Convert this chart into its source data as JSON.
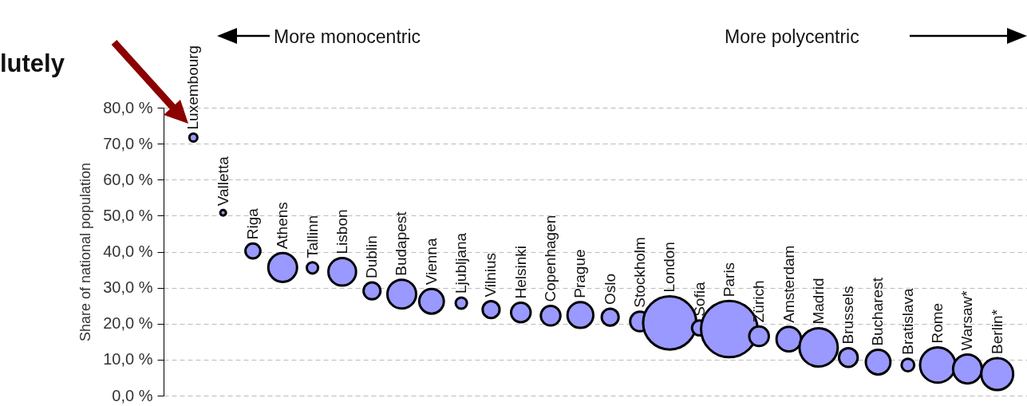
{
  "chart_data": {
    "type": "bubble",
    "ylabel": "Share of national population",
    "categories": [
      "Luxembourg",
      "Valletta",
      "Riga",
      "Athens",
      "Tallinn",
      "Lisbon",
      "Dublin",
      "Budapest",
      "Vienna",
      "Ljubljana",
      "Vilnius",
      "Helsinki",
      "Copenhagen",
      "Prague",
      "Oslo",
      "Stockholm",
      "London",
      "Sofia",
      "Paris",
      "Zürich",
      "Amsterdam",
      "Madrid",
      "Brussels",
      "Bucharest",
      "Bratislava",
      "Rome",
      "Warsaw*",
      "Berlin*"
    ],
    "series": [
      {
        "color": "#9999ff",
        "values": [
          71.7,
          50.8,
          40.2,
          35.6,
          35.5,
          34.4,
          29.1,
          28.2,
          26.2,
          25.7,
          23.9,
          23.1,
          22.2,
          22.4,
          21.8,
          20.6,
          20.2,
          18.8,
          18.5,
          16.5,
          15.7,
          13.4,
          10.6,
          9.3,
          8.5,
          8.5,
          7.4,
          6.0
        ],
        "sizes": [
          0.02,
          0.01,
          0.07,
          0.26,
          0.04,
          0.24,
          0.09,
          0.26,
          0.19,
          0.04,
          0.09,
          0.12,
          0.12,
          0.21,
          0.09,
          0.12,
          0.89,
          0.07,
          1,
          0.12,
          0.19,
          0.46,
          0.11,
          0.19,
          0.05,
          0.39,
          0.26,
          0.32
        ]
      }
    ],
    "ylim": [
      0,
      80
    ],
    "yticks": [
      {
        "value": 0,
        "label": "0,0 %"
      },
      {
        "value": 10,
        "label": "10,0 %"
      },
      {
        "value": 20,
        "label": "20,0 %"
      },
      {
        "value": 30,
        "label": "30,0 %"
      },
      {
        "value": 40,
        "label": "40,0 %"
      },
      {
        "value": 50,
        "label": "50,0 %"
      },
      {
        "value": 60,
        "label": "60,0 %"
      },
      {
        "value": 70,
        "label": "70,0 %"
      },
      {
        "value": 80,
        "label": "80,0 %"
      }
    ],
    "grid": "y",
    "tick_labels": "y",
    "annotations": [
      "lutely",
      "More monocentric",
      "More polycentric"
    ]
  }
}
